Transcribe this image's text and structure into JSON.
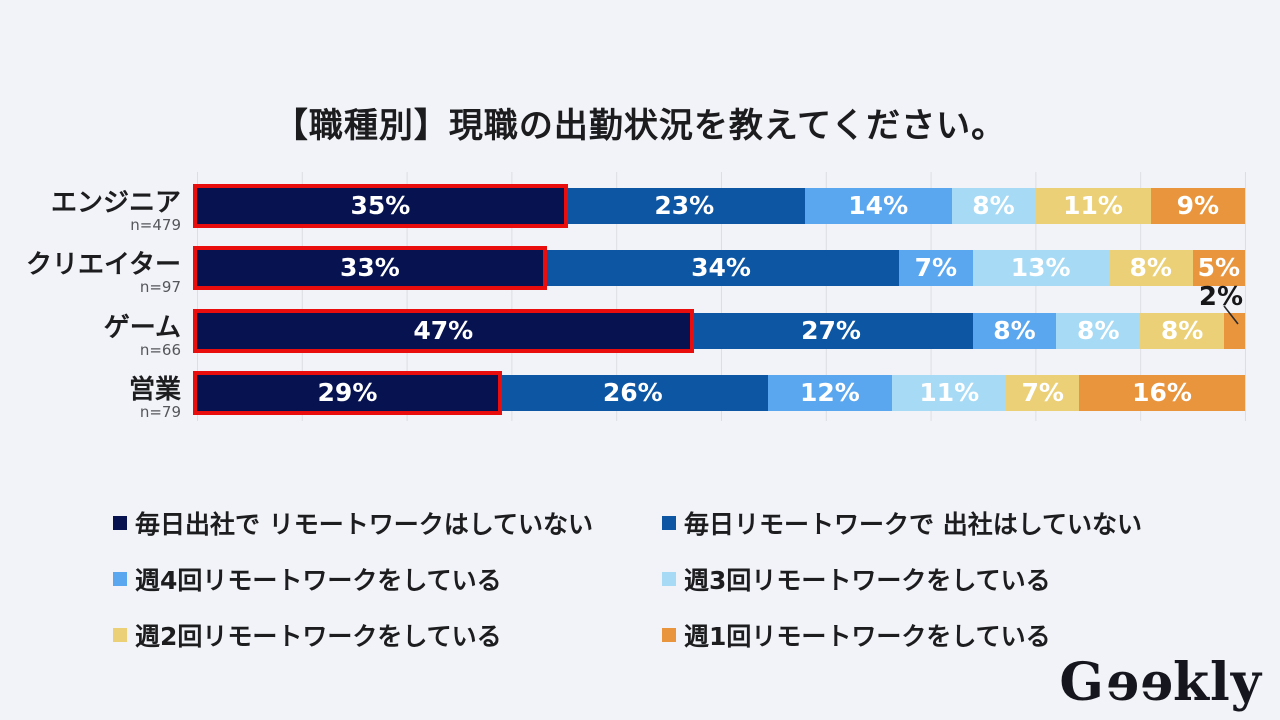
{
  "title": "【職種別】現職の出勤状況を教えてください。",
  "logo": {
    "text": "Geekly"
  },
  "colors": {
    "background": "#f1f3f8",
    "gridline": "#dcdee4",
    "highlight_border": "#e90d0d",
    "bar_label": "#ffffff",
    "annotation_text": "#17171a"
  },
  "chart_data": {
    "type": "bar",
    "orientation": "horizontal-stacked",
    "title": "【職種別】現職の出勤状況を教えてください。",
    "xlim": [
      0,
      100
    ],
    "gridlines_every_percent": 10,
    "value_suffix": "%",
    "label_min": 3,
    "highlight_color": "#e90d0d",
    "legend_position": "bottom",
    "categories": [
      {
        "label": "エンジニア",
        "n_label": "n=479"
      },
      {
        "label": "クリエイター",
        "n_label": "n=97"
      },
      {
        "label": "ゲーム",
        "n_label": "n=66"
      },
      {
        "label": "営業",
        "n_label": "n=79"
      }
    ],
    "series": [
      {
        "name": "毎日出社で リモートワークはしていない",
        "color": "#071251",
        "highlighted": true,
        "values": [
          35,
          33,
          47,
          29
        ]
      },
      {
        "name": "毎日リモートワークで 出社はしていない",
        "color": "#0c56a4",
        "highlighted": false,
        "values": [
          23,
          34,
          27,
          26
        ]
      },
      {
        "name": "週4回リモートワークをしている",
        "color": "#5aa7f0",
        "highlighted": false,
        "values": [
          14,
          7,
          8,
          12
        ]
      },
      {
        "name": "週3回リモートワークをしている",
        "color": "#a6daf5",
        "highlighted": false,
        "values": [
          8,
          13,
          8,
          11
        ]
      },
      {
        "name": "週2回リモートワークをしている",
        "color": "#ebd077",
        "highlighted": false,
        "values": [
          11,
          8,
          8,
          7
        ]
      },
      {
        "name": "週1回リモートワークをしている",
        "color": "#e9953d",
        "highlighted": false,
        "values": [
          9,
          5,
          2,
          16
        ]
      }
    ],
    "annotation": {
      "text": "2%",
      "category": "ゲーム",
      "series": "週1回リモートワークをしている"
    }
  }
}
